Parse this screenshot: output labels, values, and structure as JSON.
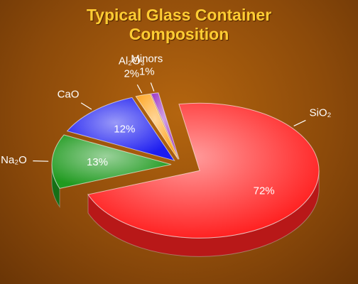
{
  "chart_data": {
    "type": "pie",
    "title": "Typical Glass Container Composition",
    "categories": [
      "SiO₂",
      "Na₂O",
      "CaO",
      "Al₂O₃",
      "Minors"
    ],
    "values": [
      72,
      13,
      12,
      2,
      1
    ],
    "value_labels": [
      "72%",
      "13%",
      "12%",
      "2%",
      "1%"
    ],
    "colors": [
      "#ff2222",
      "#1f9a1f",
      "#1c1cf0",
      "#ffa41e",
      "#9b33c4"
    ]
  }
}
